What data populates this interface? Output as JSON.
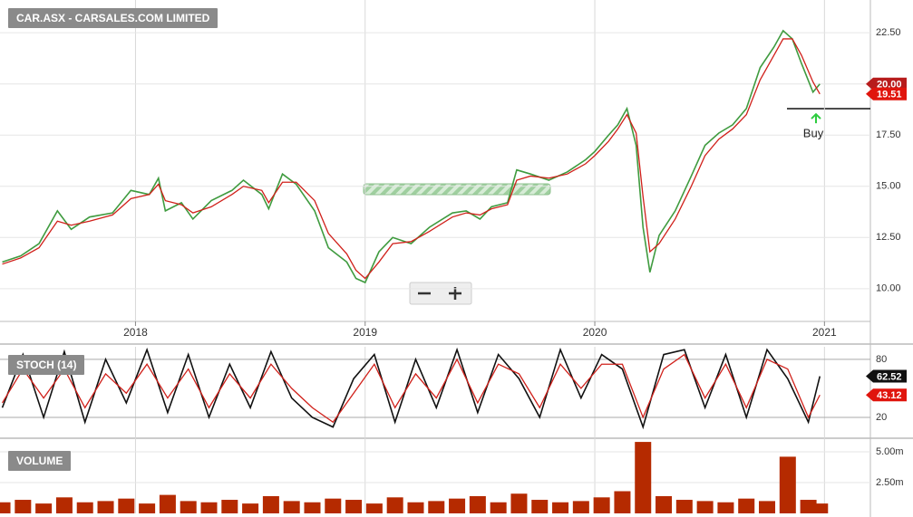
{
  "chart_data": [
    {
      "type": "line",
      "title": "CAR.ASX - CARSALES.COM LIMITED",
      "x": [
        2017.42,
        2017.5,
        2017.58,
        2017.66,
        2017.72,
        2017.8,
        2017.9,
        2017.98,
        2018.06,
        2018.1,
        2018.13,
        2018.2,
        2018.25,
        2018.33,
        2018.42,
        2018.47,
        2018.55,
        2018.58,
        2018.64,
        2018.7,
        2018.78,
        2018.84,
        2018.92,
        2018.96,
        2019.0,
        2019.06,
        2019.12,
        2019.2,
        2019.28,
        2019.38,
        2019.44,
        2019.5,
        2019.55,
        2019.62,
        2019.66,
        2019.72,
        2019.8,
        2019.88,
        2019.96,
        2020.0,
        2020.06,
        2020.1,
        2020.14,
        2020.18,
        2020.21,
        2020.24,
        2020.28,
        2020.35,
        2020.42,
        2020.48,
        2020.54,
        2020.6,
        2020.66,
        2020.72,
        2020.78,
        2020.82,
        2020.86,
        2020.9,
        2020.95,
        2020.98
      ],
      "series": [
        {
          "color": "#3f9b3f",
          "values": [
            11.3,
            11.6,
            12.2,
            13.8,
            12.9,
            13.5,
            13.7,
            14.8,
            14.6,
            15.4,
            13.8,
            14.2,
            13.4,
            14.3,
            14.8,
            15.3,
            14.6,
            13.9,
            15.6,
            15.1,
            13.8,
            12.0,
            11.3,
            10.5,
            10.3,
            11.8,
            12.5,
            12.2,
            13.0,
            13.7,
            13.8,
            13.4,
            14.0,
            14.2,
            15.8,
            15.6,
            15.3,
            15.7,
            16.3,
            16.7,
            17.5,
            18.0,
            18.8,
            17.0,
            13.0,
            10.8,
            12.6,
            13.8,
            15.5,
            17.0,
            17.6,
            18.0,
            18.8,
            20.8,
            21.8,
            22.6,
            22.2,
            21.0,
            19.6,
            20.0
          ]
        },
        {
          "color": "#d0201a",
          "values": [
            11.2,
            11.5,
            12.0,
            13.3,
            13.1,
            13.3,
            13.6,
            14.4,
            14.6,
            15.1,
            14.3,
            14.1,
            13.7,
            14.0,
            14.6,
            15.0,
            14.8,
            14.2,
            15.2,
            15.2,
            14.3,
            12.7,
            11.7,
            10.9,
            10.5,
            11.3,
            12.2,
            12.3,
            12.8,
            13.5,
            13.7,
            13.6,
            13.9,
            14.1,
            15.3,
            15.5,
            15.4,
            15.6,
            16.1,
            16.5,
            17.2,
            17.8,
            18.5,
            17.6,
            14.5,
            11.8,
            12.2,
            13.4,
            15.0,
            16.5,
            17.3,
            17.8,
            18.5,
            20.2,
            21.4,
            22.2,
            22.2,
            21.4,
            20.1,
            19.51
          ]
        }
      ],
      "xlim": [
        2017.41,
        2021.2
      ],
      "xticks": [
        2018,
        2019,
        2020,
        2021
      ],
      "ylim": [
        8.4,
        24.1
      ],
      "yticks": [
        {
          "value": 10,
          "label": "10.00"
        },
        {
          "value": 12.5,
          "label": "12.50"
        },
        {
          "value": 15,
          "label": "15.00"
        },
        {
          "value": 17.5,
          "label": "17.50"
        },
        {
          "value": 20,
          "label": "20.00"
        },
        {
          "value": 22.5,
          "label": "22.50"
        }
      ],
      "grid": true,
      "badges": [
        {
          "value": 20.0,
          "label": "20.00",
          "color": "#b71c1c"
        },
        {
          "value": 19.51,
          "label": "19.51",
          "color": "#e0150d"
        }
      ],
      "annotation": {
        "text": "Buy",
        "value": 18.7
      }
    },
    {
      "type": "line",
      "title": "STOCH (14)",
      "x": [
        2017.42,
        2017.51,
        2017.6,
        2017.69,
        2017.78,
        2017.87,
        2017.96,
        2018.05,
        2018.14,
        2018.23,
        2018.32,
        2018.41,
        2018.5,
        2018.59,
        2018.68,
        2018.77,
        2018.86,
        2018.95,
        2019.04,
        2019.13,
        2019.22,
        2019.31,
        2019.4,
        2019.49,
        2019.58,
        2019.67,
        2019.76,
        2019.85,
        2019.94,
        2020.03,
        2020.12,
        2020.21,
        2020.3,
        2020.39,
        2020.48,
        2020.57,
        2020.66,
        2020.75,
        2020.84,
        2020.93,
        2020.98
      ],
      "series": [
        {
          "color": "#111111",
          "values": [
            30,
            85,
            20,
            88,
            15,
            80,
            35,
            90,
            25,
            85,
            20,
            75,
            30,
            88,
            40,
            20,
            10,
            60,
            85,
            15,
            80,
            30,
            90,
            25,
            85,
            60,
            20,
            90,
            40,
            85,
            70,
            10,
            85,
            90,
            30,
            85,
            20,
            90,
            60,
            15,
            62.52
          ]
        },
        {
          "color": "#d0201a",
          "values": [
            35,
            70,
            40,
            70,
            30,
            65,
            45,
            75,
            40,
            70,
            30,
            65,
            40,
            75,
            50,
            30,
            15,
            45,
            75,
            30,
            65,
            40,
            80,
            35,
            75,
            65,
            30,
            75,
            50,
            75,
            75,
            20,
            70,
            85,
            40,
            75,
            30,
            80,
            70,
            20,
            43.12
          ]
        }
      ],
      "xlim": [
        2017.41,
        2021.2
      ],
      "ylim": [
        -1.6,
        93
      ],
      "yticks": [
        20,
        80
      ],
      "grid": true,
      "badges": [
        {
          "value": 62.52,
          "label": "62.52",
          "color": "#111111"
        },
        {
          "value": 43.12,
          "label": "43.12",
          "color": "#e0150d"
        }
      ]
    },
    {
      "type": "bar",
      "title": "VOLUME",
      "x": [
        2017.42,
        2017.51,
        2017.6,
        2017.69,
        2017.78,
        2017.87,
        2017.96,
        2018.05,
        2018.14,
        2018.23,
        2018.32,
        2018.41,
        2018.5,
        2018.59,
        2018.68,
        2018.77,
        2018.86,
        2018.95,
        2019.04,
        2019.13,
        2019.22,
        2019.31,
        2019.4,
        2019.49,
        2019.58,
        2019.67,
        2019.76,
        2019.85,
        2019.94,
        2020.03,
        2020.12,
        2020.21,
        2020.3,
        2020.39,
        2020.48,
        2020.57,
        2020.66,
        2020.75,
        2020.84,
        2020.93,
        2020.98
      ],
      "values": [
        0.9,
        1.1,
        0.8,
        1.3,
        0.9,
        1.0,
        1.2,
        0.8,
        1.5,
        1.0,
        0.9,
        1.1,
        0.8,
        1.4,
        1.0,
        0.9,
        1.2,
        1.1,
        0.8,
        1.3,
        0.9,
        1.0,
        1.2,
        1.4,
        0.9,
        1.6,
        1.1,
        0.9,
        1.0,
        1.3,
        1.8,
        5.8,
        1.4,
        1.1,
        1.0,
        0.9,
        1.2,
        1.0,
        4.6,
        1.1,
        0.8
      ],
      "color": "#b52a00",
      "xlim": [
        2017.41,
        2021.2
      ],
      "ylim": [
        0,
        6.1
      ],
      "yticks": [
        {
          "value": 2.5,
          "label": "2.50m"
        },
        {
          "value": 5,
          "label": "5.00m"
        }
      ],
      "grid": true
    }
  ]
}
